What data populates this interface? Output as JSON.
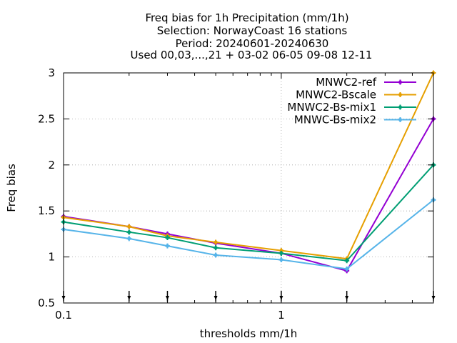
{
  "chart_data": {
    "type": "line",
    "title_lines": [
      "Freq bias  for 1h Precipitation (mm/1h)",
      "Selection: NorwayCoast     16 stations",
      "Period: 20240601-20240630",
      "Used 00,03,...,21 + 03-02 06-05 09-08 12-11"
    ],
    "xlabel": "thresholds mm/1h",
    "ylabel": "Freq bias",
    "x_scale": "log",
    "xlim": [
      0.1,
      5
    ],
    "ylim": [
      0.5,
      3
    ],
    "x_tick_labels": [
      {
        "value": 0.1,
        "label": "0.1"
      },
      {
        "value": 1,
        "label": "1"
      }
    ],
    "y_tick_labels": [
      {
        "value": 0.5,
        "label": "0.5"
      },
      {
        "value": 1,
        "label": "1"
      },
      {
        "value": 1.5,
        "label": "1.5"
      },
      {
        "value": 2,
        "label": "2"
      },
      {
        "value": 2.5,
        "label": "2.5"
      },
      {
        "value": 3,
        "label": "3"
      }
    ],
    "grid": true,
    "legend_position": "top-right",
    "x": [
      0.1,
      0.2,
      0.3,
      0.5,
      1,
      2,
      5
    ],
    "series": [
      {
        "name": "MNWC2-ref",
        "color": "#9400d3",
        "values": [
          1.44,
          1.33,
          1.25,
          1.15,
          1.04,
          0.85,
          2.5
        ]
      },
      {
        "name": "MNWC2-Bscale",
        "color": "#e69f00",
        "values": [
          1.43,
          1.33,
          1.23,
          1.16,
          1.07,
          0.98,
          3.0
        ]
      },
      {
        "name": "MNWC2-Bs-mix1",
        "color": "#009e73",
        "values": [
          1.38,
          1.27,
          1.21,
          1.1,
          1.04,
          0.96,
          2.0
        ]
      },
      {
        "name": "MNWC-Bs-mix2",
        "color": "#56b4e9",
        "values": [
          1.3,
          1.2,
          1.12,
          1.02,
          0.97,
          0.87,
          1.62
        ]
      }
    ],
    "observation_marks_x": [
      0.1,
      0.2,
      0.3,
      0.5,
      1,
      2,
      5
    ]
  }
}
